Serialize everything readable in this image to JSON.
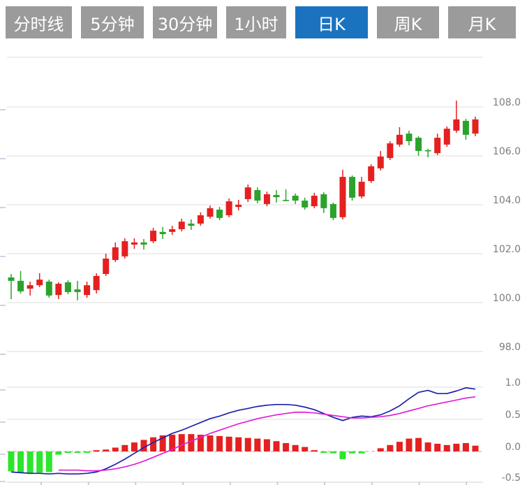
{
  "toolbar": {
    "tabs": [
      {
        "label": "分时线",
        "active": false
      },
      {
        "label": "5分钟",
        "active": false
      },
      {
        "label": "30分钟",
        "active": false
      },
      {
        "label": "1小时",
        "active": false
      },
      {
        "label": "日K",
        "active": true
      },
      {
        "label": "周K",
        "active": false
      },
      {
        "label": "月K",
        "active": false
      }
    ],
    "active_bg": "#1b73c0",
    "inactive_bg": "#9b9b9b",
    "text_color": "#ffffff"
  },
  "chart_data": [
    {
      "type": "candlestick",
      "panel": "price",
      "grid": true,
      "legend": "none",
      "y_axis": {
        "side": "right",
        "tick_labels": [
          "108.0",
          "106.0",
          "104.0",
          "102.0",
          "100.0",
          "98.0"
        ],
        "tick_values": [
          108.0,
          106.0,
          104.0,
          102.0,
          100.0,
          98.0
        ],
        "ylim": [
          96.9,
          110.0
        ]
      },
      "up_color": "#e42020",
      "down_color": "#2ba32b",
      "candles": [
        {
          "o": 101.03,
          "h": 101.17,
          "l": 100.14,
          "c": 100.89
        },
        {
          "o": 100.89,
          "h": 101.29,
          "l": 100.37,
          "c": 100.46
        },
        {
          "o": 100.57,
          "h": 100.86,
          "l": 100.29,
          "c": 100.71
        },
        {
          "o": 100.71,
          "h": 101.2,
          "l": 100.63,
          "c": 100.94
        },
        {
          "o": 100.86,
          "h": 100.94,
          "l": 100.2,
          "c": 100.29
        },
        {
          "o": 100.31,
          "h": 100.83,
          "l": 100.14,
          "c": 100.77
        },
        {
          "o": 100.83,
          "h": 100.91,
          "l": 100.34,
          "c": 100.43
        },
        {
          "o": 100.54,
          "h": 100.89,
          "l": 100.09,
          "c": 100.43
        },
        {
          "o": 100.31,
          "h": 100.86,
          "l": 100.2,
          "c": 100.71
        },
        {
          "o": 100.51,
          "h": 101.2,
          "l": 100.37,
          "c": 101.09
        },
        {
          "o": 101.17,
          "h": 102.0,
          "l": 101.09,
          "c": 101.8
        },
        {
          "o": 101.74,
          "h": 102.46,
          "l": 101.66,
          "c": 102.26
        },
        {
          "o": 101.89,
          "h": 102.63,
          "l": 101.8,
          "c": 102.51
        },
        {
          "o": 102.37,
          "h": 102.63,
          "l": 102.2,
          "c": 102.46
        },
        {
          "o": 102.46,
          "h": 102.6,
          "l": 102.17,
          "c": 102.37
        },
        {
          "o": 102.51,
          "h": 103.06,
          "l": 102.43,
          "c": 102.94
        },
        {
          "o": 102.89,
          "h": 103.09,
          "l": 102.6,
          "c": 102.8
        },
        {
          "o": 102.89,
          "h": 103.14,
          "l": 102.77,
          "c": 103.0
        },
        {
          "o": 103.0,
          "h": 103.43,
          "l": 102.91,
          "c": 103.31
        },
        {
          "o": 103.23,
          "h": 103.4,
          "l": 102.97,
          "c": 103.14
        },
        {
          "o": 103.23,
          "h": 103.69,
          "l": 103.14,
          "c": 103.57
        },
        {
          "o": 103.51,
          "h": 103.97,
          "l": 103.43,
          "c": 103.86
        },
        {
          "o": 103.8,
          "h": 103.91,
          "l": 103.37,
          "c": 103.46
        },
        {
          "o": 103.57,
          "h": 104.26,
          "l": 103.49,
          "c": 104.14
        },
        {
          "o": 103.91,
          "h": 104.2,
          "l": 103.77,
          "c": 104.0
        },
        {
          "o": 104.23,
          "h": 104.83,
          "l": 104.11,
          "c": 104.71
        },
        {
          "o": 104.6,
          "h": 104.71,
          "l": 104.06,
          "c": 104.17
        },
        {
          "o": 104.03,
          "h": 104.54,
          "l": 103.94,
          "c": 104.43
        },
        {
          "o": 104.4,
          "h": 104.6,
          "l": 104.09,
          "c": 104.31
        },
        {
          "o": 104.2,
          "h": 104.63,
          "l": 104.14,
          "c": 104.17
        },
        {
          "o": 104.37,
          "h": 104.46,
          "l": 104.03,
          "c": 104.17
        },
        {
          "o": 104.17,
          "h": 104.29,
          "l": 103.8,
          "c": 103.89
        },
        {
          "o": 103.94,
          "h": 104.49,
          "l": 103.86,
          "c": 104.37
        },
        {
          "o": 104.43,
          "h": 104.51,
          "l": 103.66,
          "c": 103.86
        },
        {
          "o": 104.03,
          "h": 104.09,
          "l": 103.37,
          "c": 103.46
        },
        {
          "o": 103.49,
          "h": 105.43,
          "l": 103.4,
          "c": 105.14
        },
        {
          "o": 105.14,
          "h": 105.2,
          "l": 104.17,
          "c": 104.29
        },
        {
          "o": 104.34,
          "h": 105.14,
          "l": 104.26,
          "c": 104.94
        },
        {
          "o": 104.97,
          "h": 105.66,
          "l": 104.89,
          "c": 105.57
        },
        {
          "o": 105.49,
          "h": 106.2,
          "l": 105.4,
          "c": 105.97
        },
        {
          "o": 105.91,
          "h": 106.6,
          "l": 105.83,
          "c": 106.51
        },
        {
          "o": 106.46,
          "h": 107.17,
          "l": 106.37,
          "c": 106.86
        },
        {
          "o": 106.91,
          "h": 107.03,
          "l": 106.43,
          "c": 106.6
        },
        {
          "o": 106.74,
          "h": 106.8,
          "l": 106.0,
          "c": 106.2
        },
        {
          "o": 106.23,
          "h": 106.29,
          "l": 105.94,
          "c": 106.2
        },
        {
          "o": 106.11,
          "h": 106.91,
          "l": 106.03,
          "c": 106.74
        },
        {
          "o": 106.46,
          "h": 107.2,
          "l": 106.37,
          "c": 107.11
        },
        {
          "o": 107.03,
          "h": 108.26,
          "l": 106.94,
          "c": 107.49
        },
        {
          "o": 107.43,
          "h": 107.51,
          "l": 106.66,
          "c": 106.86
        },
        {
          "o": 106.91,
          "h": 107.6,
          "l": 106.8,
          "c": 107.49
        }
      ]
    },
    {
      "type": "macd",
      "panel": "indicator",
      "grid": true,
      "y_axis": {
        "side": "right",
        "tick_labels": [
          "1.0",
          "0.5",
          "0.0",
          "-0.5"
        ],
        "tick_values": [
          1.0,
          0.5,
          0.0,
          -0.5
        ],
        "ylim": [
          -0.48,
          1.1
        ]
      },
      "hist_up_color": "#e42020",
      "hist_down_color": "#2de52d",
      "dif_color": "#1e22aa",
      "dea_color": "#e21fd8",
      "zero_line_color": "#f0a0bb",
      "histogram": [
        -0.31,
        -0.33,
        -0.35,
        -0.33,
        -0.32,
        -0.05,
        -0.01,
        -0.02,
        -0.02,
        0.02,
        0.03,
        0.06,
        0.1,
        0.14,
        0.18,
        0.22,
        0.25,
        0.26,
        0.27,
        0.27,
        0.26,
        0.25,
        0.24,
        0.23,
        0.22,
        0.21,
        0.2,
        0.19,
        0.16,
        0.13,
        0.1,
        0.07,
        0.02,
        -0.02,
        -0.03,
        -0.12,
        -0.03,
        -0.03,
        0.0,
        0.05,
        0.1,
        0.15,
        0.2,
        0.21,
        0.14,
        0.12,
        0.1,
        0.12,
        0.13,
        0.09
      ],
      "dif": [
        -0.32,
        -0.33,
        -0.34,
        -0.34,
        -0.35,
        -0.34,
        -0.35,
        -0.35,
        -0.34,
        -0.32,
        -0.27,
        -0.2,
        -0.12,
        -0.03,
        0.06,
        0.14,
        0.21,
        0.28,
        0.33,
        0.39,
        0.45,
        0.51,
        0.55,
        0.6,
        0.64,
        0.67,
        0.7,
        0.72,
        0.73,
        0.73,
        0.72,
        0.69,
        0.65,
        0.59,
        0.53,
        0.48,
        0.53,
        0.55,
        0.54,
        0.57,
        0.63,
        0.71,
        0.82,
        0.92,
        0.95,
        0.9,
        0.9,
        0.94,
        0.99,
        0.97
      ],
      "dea": [
        null,
        null,
        null,
        null,
        null,
        -0.29,
        -0.29,
        -0.29,
        -0.3,
        -0.3,
        -0.29,
        -0.27,
        -0.24,
        -0.2,
        -0.15,
        -0.09,
        -0.03,
        0.03,
        0.1,
        0.16,
        0.22,
        0.28,
        0.33,
        0.38,
        0.43,
        0.47,
        0.51,
        0.54,
        0.57,
        0.59,
        0.61,
        0.61,
        0.6,
        0.58,
        0.56,
        0.54,
        0.52,
        0.52,
        0.53,
        0.54,
        0.56,
        0.59,
        0.63,
        0.67,
        0.71,
        0.74,
        0.77,
        0.8,
        0.83,
        0.85
      ]
    }
  ],
  "colors": {
    "grid": "#e3e3e3",
    "axis_text": "#7c7c7c",
    "axis_tick": "#b9c2d8"
  }
}
